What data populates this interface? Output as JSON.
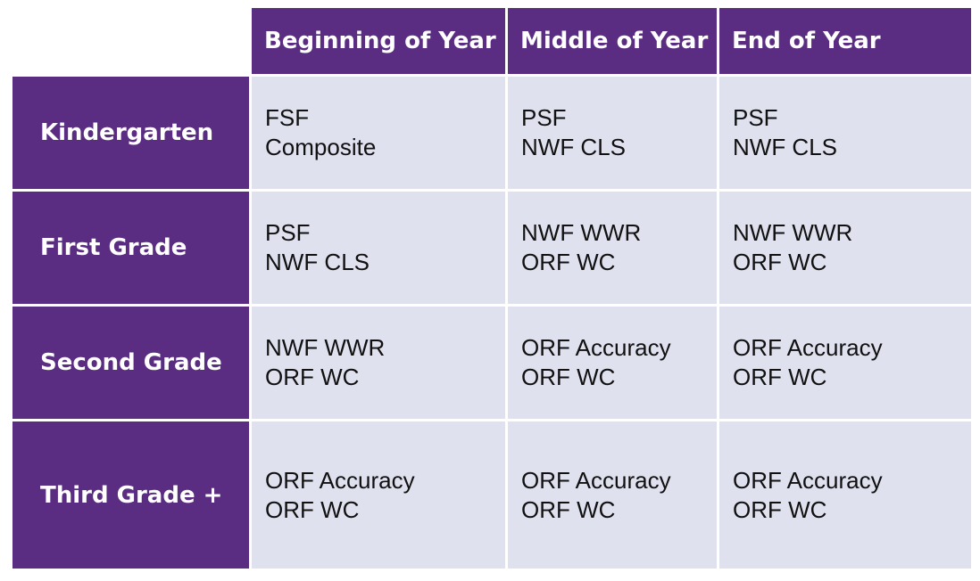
{
  "columns": [
    "Beginning of Year",
    "Middle of Year",
    "End of  Year"
  ],
  "rows": [
    {
      "label": "Kindergarten",
      "cells": [
        {
          "line1": "FSF",
          "line2": "Composite"
        },
        {
          "line1": "PSF",
          "line2": "NWF CLS"
        },
        {
          "line1": "PSF",
          "line2": "NWF CLS"
        }
      ]
    },
    {
      "label": "First Grade",
      "cells": [
        {
          "line1": "PSF",
          "line2": "NWF CLS"
        },
        {
          "line1": "NWF WWR",
          "line2": "ORF WC"
        },
        {
          "line1": "NWF WWR",
          "line2": "ORF WC"
        }
      ]
    },
    {
      "label": "Second Grade",
      "cells": [
        {
          "line1": "NWF WWR",
          "line2": "ORF WC"
        },
        {
          "line1": "ORF Accuracy",
          "line2": "ORF WC"
        },
        {
          "line1": "ORF Accuracy",
          "line2": "ORF WC"
        }
      ]
    },
    {
      "label": "Third Grade +",
      "cells": [
        {
          "line1": "ORF Accuracy",
          "line2": "ORF WC"
        },
        {
          "line1": "ORF Accuracy",
          "line2": "ORF WC"
        },
        {
          "line1": "ORF Accuracy",
          "line2": "ORF WC"
        }
      ]
    }
  ],
  "colors": {
    "header_bg": "#5a2d82",
    "header_text": "#ffffff",
    "cell_bg": "#dfe1ef",
    "cell_text": "#111111"
  }
}
